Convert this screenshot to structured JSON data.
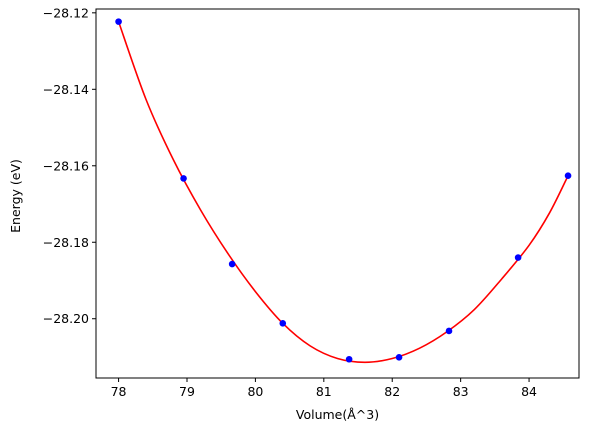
{
  "chart_data": {
    "type": "line",
    "xlabel": "Volume(Å^3)",
    "ylabel": "Energy (eV)",
    "xlim": [
      77.67,
      84.73
    ],
    "ylim": [
      -28.2155,
      -28.119
    ],
    "xticks": [
      {
        "value": 78,
        "label": "78"
      },
      {
        "value": 79,
        "label": "79"
      },
      {
        "value": 80,
        "label": "80"
      },
      {
        "value": 81,
        "label": "81"
      },
      {
        "value": 82,
        "label": "82"
      },
      {
        "value": 83,
        "label": "83"
      },
      {
        "value": 84,
        "label": "84"
      }
    ],
    "yticks": [
      {
        "value": -28.12,
        "label": "−28.12"
      },
      {
        "value": -28.14,
        "label": "−28.14"
      },
      {
        "value": -28.16,
        "label": "−28.16"
      },
      {
        "value": -28.18,
        "label": "−28.18"
      },
      {
        "value": -28.2,
        "label": "−28.20"
      }
    ],
    "grid": false,
    "series": [
      {
        "style": "markers",
        "color": "#0000ff",
        "x": [
          78.0,
          78.95,
          79.66,
          80.4,
          81.37,
          82.1,
          82.83,
          83.84,
          84.57
        ],
        "y": [
          -28.1223,
          -28.1633,
          -28.1857,
          -28.2012,
          -28.2106,
          -28.2101,
          -28.2032,
          -28.184,
          -28.1626
        ]
      },
      {
        "style": "curve",
        "color": "#ff0000",
        "x": [
          78.0,
          78.4,
          78.8,
          79.2,
          79.6,
          80.0,
          80.4,
          80.8,
          81.2,
          81.6,
          82.0,
          82.4,
          82.8,
          83.2,
          83.6,
          84.0,
          84.3,
          84.57
        ],
        "y": [
          -28.1223,
          -28.1426,
          -28.1584,
          -28.1716,
          -28.183,
          -28.1929,
          -28.2012,
          -28.2071,
          -28.2104,
          -28.2114,
          -28.2104,
          -28.2077,
          -28.2034,
          -28.1976,
          -28.1896,
          -28.1808,
          -28.1723,
          -28.1626
        ]
      }
    ]
  }
}
